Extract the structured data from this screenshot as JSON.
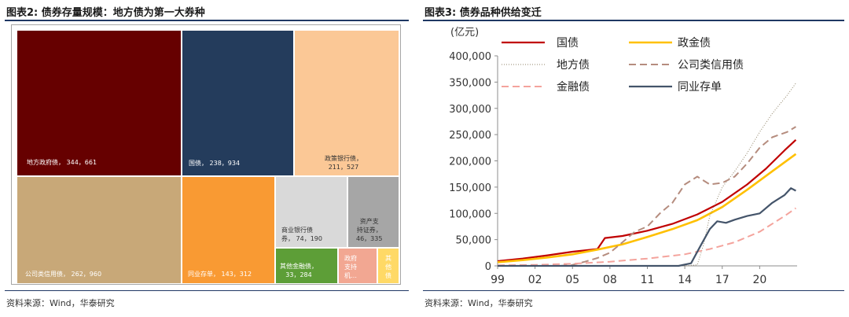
{
  "left_panel": {
    "title": "图表2:  债券存量规模：地方债为第一大券种",
    "source": "资料来源：Wind，华泰研究"
  },
  "right_panel": {
    "title": "图表3:  债券品种供给变迁",
    "source": "资料来源：Wind，华泰研究"
  },
  "chart_data": [
    {
      "type": "treemap",
      "unit": "亿元",
      "items": [
        {
          "name": "地方政府债",
          "value": 344661,
          "label": "地方政府债， 344，661",
          "color": "#660000",
          "text_color": "#ffffff"
        },
        {
          "name": "国债",
          "value": 238934,
          "label": "国债， 238，934",
          "color": "#243c5c",
          "text_color": "#ffffff"
        },
        {
          "name": "政策银行债",
          "value": 211527,
          "label": "政策银行债，\n211，527",
          "color": "#fbc896",
          "text_color": "#333333"
        },
        {
          "name": "公司类信用债",
          "value": 262960,
          "label": "公司类信用债， 262，960",
          "color": "#c8a878",
          "text_color": "#ffffff"
        },
        {
          "name": "同业存单",
          "value": 143312,
          "label": "同业存单， 143，312",
          "color": "#f99a33",
          "text_color": "#ffffff"
        },
        {
          "name": "商业银行债券",
          "value": 74190,
          "label": "商业银行债\n券， 74，190",
          "color": "#d9d9d9",
          "text_color": "#333333"
        },
        {
          "name": "资产支持证券",
          "value": 46335,
          "label": "资产支\n持证券，\n46，335",
          "color": "#a6a6a6",
          "text_color": "#333333"
        },
        {
          "name": "其他金融债",
          "value": 33284,
          "label": "其他金融债，\n33，284",
          "color": "#5d9e37",
          "text_color": "#ffffff"
        },
        {
          "name": "政府支持机构债",
          "value": null,
          "label": "政府\n支持\n机…",
          "color": "#f2a792",
          "text_color": "#ffffff"
        },
        {
          "name": "其他",
          "value": null,
          "label": "其\n他\n债",
          "color": "#ffd966",
          "text_color": "#ffffff"
        }
      ]
    },
    {
      "type": "line",
      "y_unit_label": "(亿元)",
      "ylim": [
        0,
        400000
      ],
      "yticks": [
        "0",
        "50,000",
        "100,000",
        "150,000",
        "200,000",
        "250,000",
        "300,000",
        "350,000",
        "400,000"
      ],
      "xlim": [
        1999,
        2023
      ],
      "xticks": [
        {
          "year": 1999,
          "label": "99"
        },
        {
          "year": 2002,
          "label": "02"
        },
        {
          "year": 2005,
          "label": "05"
        },
        {
          "year": 2008,
          "label": "08"
        },
        {
          "year": 2011,
          "label": "11"
        },
        {
          "year": 2014,
          "label": "14"
        },
        {
          "year": 2017,
          "label": "17"
        },
        {
          "year": 2020,
          "label": "20"
        }
      ],
      "grid": false,
      "legend_position": "top-left",
      "series": [
        {
          "name": "国债",
          "color": "#c00000",
          "style": "solid",
          "width": 2.2,
          "points": [
            [
              1999,
              9000
            ],
            [
              2001,
              14000
            ],
            [
              2003,
              20000
            ],
            [
              2005,
              27000
            ],
            [
              2007,
              32000
            ],
            [
              2007.6,
              53000
            ],
            [
              2009,
              57000
            ],
            [
              2011,
              67000
            ],
            [
              2013,
              80000
            ],
            [
              2015,
              98000
            ],
            [
              2017,
              122000
            ],
            [
              2019,
              155000
            ],
            [
              2020.5,
              185000
            ],
            [
              2022,
              220000
            ],
            [
              2022.9,
              240000
            ]
          ]
        },
        {
          "name": "政金债",
          "color": "#ffc000",
          "style": "solid",
          "width": 2.6,
          "points": [
            [
              1999,
              7000
            ],
            [
              2001,
              11000
            ],
            [
              2003,
              16000
            ],
            [
              2005,
              22000
            ],
            [
              2007,
              31000
            ],
            [
              2009,
              41000
            ],
            [
              2011,
              55000
            ],
            [
              2013,
              70000
            ],
            [
              2015,
              87000
            ],
            [
              2017,
              112000
            ],
            [
              2019,
              145000
            ],
            [
              2021,
              180000
            ],
            [
              2022.9,
              213000
            ]
          ]
        },
        {
          "name": "地方债",
          "color": "#8f8367",
          "style": "dotted",
          "width": 1,
          "points": [
            [
              2009,
              0
            ],
            [
              2014,
              0
            ],
            [
              2015,
              2000
            ],
            [
              2015.5,
              40000
            ],
            [
              2016,
              95000
            ],
            [
              2017,
              150000
            ],
            [
              2018,
              180000
            ],
            [
              2019,
              215000
            ],
            [
              2020,
              255000
            ],
            [
              2021,
              290000
            ],
            [
              2022.2,
              325000
            ],
            [
              2022.9,
              348000
            ]
          ]
        },
        {
          "name": "公司类信用债",
          "color": "#b58c7e",
          "style": "dashed",
          "width": 2,
          "points": [
            [
              2004,
              0
            ],
            [
              2005,
              2000
            ],
            [
              2006,
              8000
            ],
            [
              2007,
              15000
            ],
            [
              2008,
              25000
            ],
            [
              2009,
              45000
            ],
            [
              2010,
              65000
            ],
            [
              2011,
              75000
            ],
            [
              2012,
              100000
            ],
            [
              2013,
              120000
            ],
            [
              2014,
              155000
            ],
            [
              2015,
              170000
            ],
            [
              2016,
              155000
            ],
            [
              2017,
              158000
            ],
            [
              2018,
              170000
            ],
            [
              2019,
              195000
            ],
            [
              2020,
              225000
            ],
            [
              2021,
              245000
            ],
            [
              2022.2,
              255000
            ],
            [
              2022.9,
              265000
            ]
          ]
        },
        {
          "name": "金融债",
          "color": "#f4a39c",
          "style": "dashed",
          "width": 2,
          "points": [
            [
              1999,
              1000
            ],
            [
              2002,
              2000
            ],
            [
              2005,
              4000
            ],
            [
              2008,
              8000
            ],
            [
              2011,
              14000
            ],
            [
              2014,
              22000
            ],
            [
              2016,
              32000
            ],
            [
              2018,
              45000
            ],
            [
              2020,
              65000
            ],
            [
              2022,
              95000
            ],
            [
              2022.9,
              110000
            ]
          ]
        },
        {
          "name": "同业存单",
          "color": "#44546a",
          "style": "solid",
          "width": 2.2,
          "points": [
            [
              1999,
              0
            ],
            [
              2013.5,
              0
            ],
            [
              2014.5,
              5000
            ],
            [
              2015.3,
              40000
            ],
            [
              2016,
              70000
            ],
            [
              2016.6,
              85000
            ],
            [
              2017.3,
              82000
            ],
            [
              2018,
              88000
            ],
            [
              2019,
              95000
            ],
            [
              2020,
              100000
            ],
            [
              2021,
              120000
            ],
            [
              2022,
              135000
            ],
            [
              2022.5,
              148000
            ],
            [
              2022.9,
              143000
            ]
          ]
        }
      ]
    }
  ]
}
